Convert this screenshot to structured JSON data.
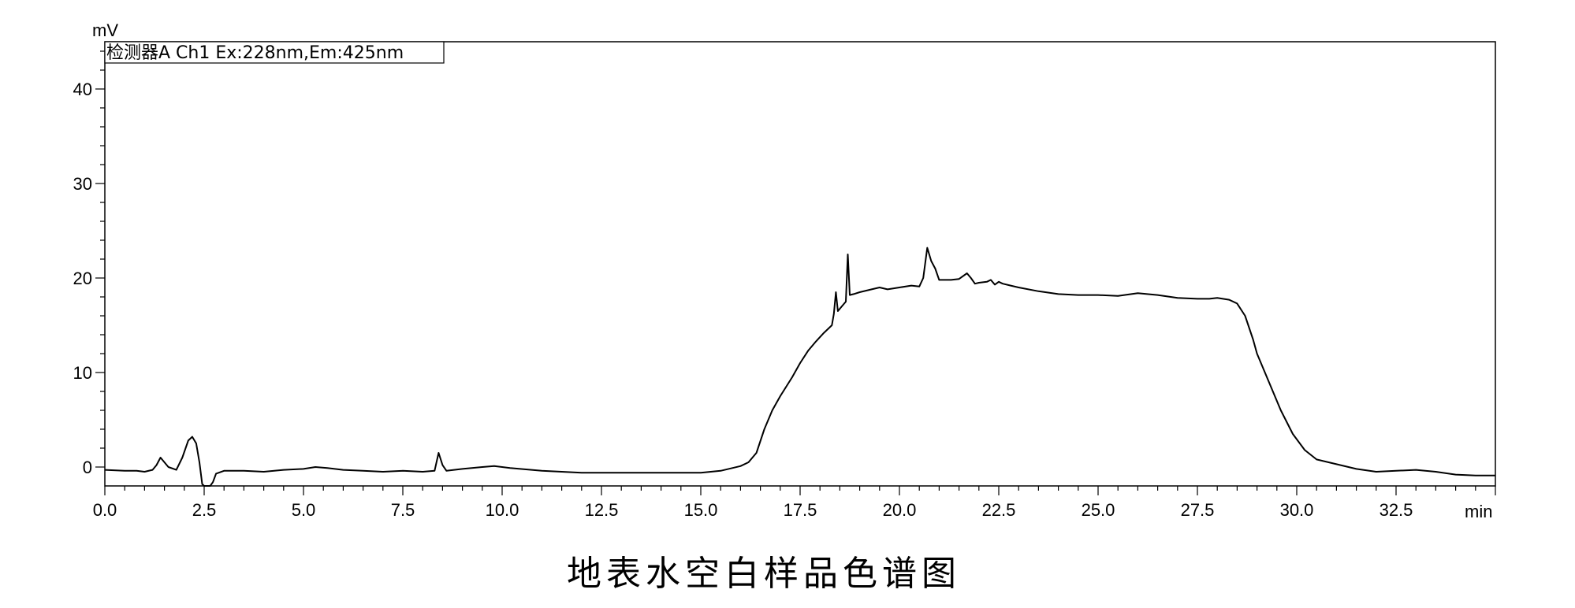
{
  "chart_data": {
    "type": "line",
    "title": "地表水空白样品色谱图",
    "xlabel": "min",
    "ylabel": "mV",
    "xlim": [
      0,
      35
    ],
    "ylim": [
      -2,
      45
    ],
    "x_ticks": [
      "0.0",
      "2.5",
      "5.0",
      "7.5",
      "10.0",
      "12.5",
      "15.0",
      "17.5",
      "20.0",
      "22.5",
      "25.0",
      "27.5",
      "30.0",
      "32.5"
    ],
    "y_ticks": [
      "0",
      "10",
      "20",
      "30",
      "40"
    ],
    "grid": false,
    "legend_position": "top-left",
    "series": [
      {
        "name": "检测器A Ch1 Ex:228nm,Em:425nm",
        "color": "#000000",
        "x": [
          0.0,
          0.5,
          0.8,
          1.0,
          1.2,
          1.3,
          1.4,
          1.5,
          1.6,
          1.8,
          1.95,
          2.1,
          2.2,
          2.3,
          2.38,
          2.45,
          2.5,
          2.55,
          2.65,
          2.72,
          2.8,
          3.0,
          3.5,
          4.0,
          4.5,
          5.0,
          5.3,
          5.6,
          6.0,
          6.5,
          7.0,
          7.5,
          8.0,
          8.3,
          8.4,
          8.5,
          8.6,
          9.0,
          9.5,
          9.8,
          10.2,
          11.0,
          12.0,
          13.0,
          14.0,
          15.0,
          15.5,
          16.0,
          16.2,
          16.4,
          16.6,
          16.8,
          17.0,
          17.3,
          17.5,
          17.7,
          17.9,
          18.1,
          18.3,
          18.35,
          18.4,
          18.45,
          18.55,
          18.65,
          18.7,
          18.75,
          18.85,
          19.0,
          19.3,
          19.5,
          19.7,
          20.0,
          20.3,
          20.5,
          20.6,
          20.7,
          20.8,
          20.9,
          21.0,
          21.3,
          21.5,
          21.7,
          21.8,
          21.9,
          22.0,
          22.2,
          22.3,
          22.4,
          22.5,
          22.6,
          22.8,
          23.0,
          23.5,
          24.0,
          24.5,
          25.0,
          25.5,
          26.0,
          26.5,
          27.0,
          27.5,
          27.8,
          28.0,
          28.3,
          28.5,
          28.7,
          28.9,
          29.0,
          29.3,
          29.6,
          29.9,
          30.2,
          30.5,
          31.0,
          31.5,
          32.0,
          32.5,
          33.0,
          33.5,
          34.0,
          34.5,
          35.0
        ],
        "y": [
          -0.3,
          -0.4,
          -0.4,
          -0.5,
          -0.3,
          0.2,
          1.0,
          0.5,
          0.0,
          -0.3,
          1.0,
          2.8,
          3.2,
          2.5,
          0.5,
          -1.8,
          -2.0,
          -2.0,
          -2.0,
          -1.6,
          -0.7,
          -0.4,
          -0.4,
          -0.5,
          -0.3,
          -0.2,
          0.0,
          -0.1,
          -0.3,
          -0.4,
          -0.5,
          -0.4,
          -0.5,
          -0.4,
          1.5,
          0.2,
          -0.4,
          -0.2,
          0.0,
          0.1,
          -0.1,
          -0.4,
          -0.6,
          -0.6,
          -0.6,
          -0.6,
          -0.4,
          0.1,
          0.5,
          1.5,
          4.0,
          6.0,
          7.5,
          9.5,
          11.0,
          12.3,
          13.3,
          14.2,
          15.0,
          16.2,
          18.5,
          16.5,
          17.0,
          17.5,
          22.5,
          18.2,
          18.3,
          18.5,
          18.8,
          19.0,
          18.8,
          19.0,
          19.2,
          19.1,
          20.0,
          23.2,
          21.8,
          21.0,
          19.8,
          19.8,
          19.9,
          20.5,
          20.0,
          19.4,
          19.5,
          19.6,
          19.8,
          19.3,
          19.6,
          19.4,
          19.2,
          19.0,
          18.6,
          18.3,
          18.2,
          18.2,
          18.1,
          18.4,
          18.2,
          17.9,
          17.8,
          17.8,
          17.9,
          17.7,
          17.3,
          16.0,
          13.5,
          12.0,
          9.0,
          6.0,
          3.5,
          1.8,
          0.8,
          0.3,
          -0.2,
          -0.5,
          -0.4,
          -0.3,
          -0.5,
          -0.8,
          -0.9,
          -0.9
        ]
      }
    ]
  }
}
